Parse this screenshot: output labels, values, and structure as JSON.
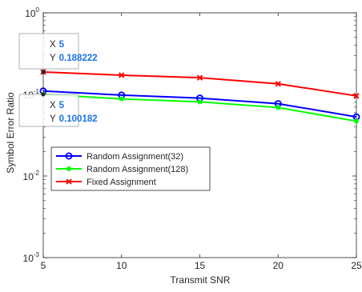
{
  "chart_data": {
    "type": "line",
    "xlabel": "Transmit SNR",
    "ylabel": "Symbol Error Ratio",
    "x": [
      5,
      10,
      15,
      20,
      25
    ],
    "xlim": [
      5,
      25
    ],
    "ylim": [
      0.001,
      1
    ],
    "yscale": "log",
    "x_ticks": [
      5,
      10,
      15,
      20,
      25
    ],
    "y_ticks": [
      {
        "value": 0.001,
        "base": "10",
        "exp": "-3"
      },
      {
        "value": 0.01,
        "base": "10",
        "exp": "-2"
      },
      {
        "value": 0.1,
        "base": "10",
        "exp": "-1"
      },
      {
        "value": 1,
        "base": "10",
        "exp": "0"
      }
    ],
    "grid": false,
    "legend_position": "lower-left",
    "series": [
      {
        "name": "Random Assignment(32)",
        "color": "#0000ff",
        "marker": "circle",
        "values": [
          0.11,
          0.098,
          0.09,
          0.077,
          0.053
        ]
      },
      {
        "name": "Random Assignment(128)",
        "color": "#00ff00",
        "marker": "asterisk",
        "values": [
          0.100182,
          0.088,
          0.081,
          0.069,
          0.047
        ]
      },
      {
        "name": "Fixed Assignment",
        "color": "#ff0000",
        "marker": "x",
        "values": [
          0.188222,
          0.172,
          0.16,
          0.135,
          0.096
        ]
      }
    ],
    "datatips": [
      {
        "x_label": "X",
        "x_value": "5",
        "y_label": "Y",
        "y_value": "0.188222",
        "x": 5,
        "y": 0.188222
      },
      {
        "x_label": "X",
        "x_value": "5",
        "y_label": "Y",
        "y_value": "0.100182",
        "x": 5,
        "y": 0.100182
      }
    ]
  }
}
